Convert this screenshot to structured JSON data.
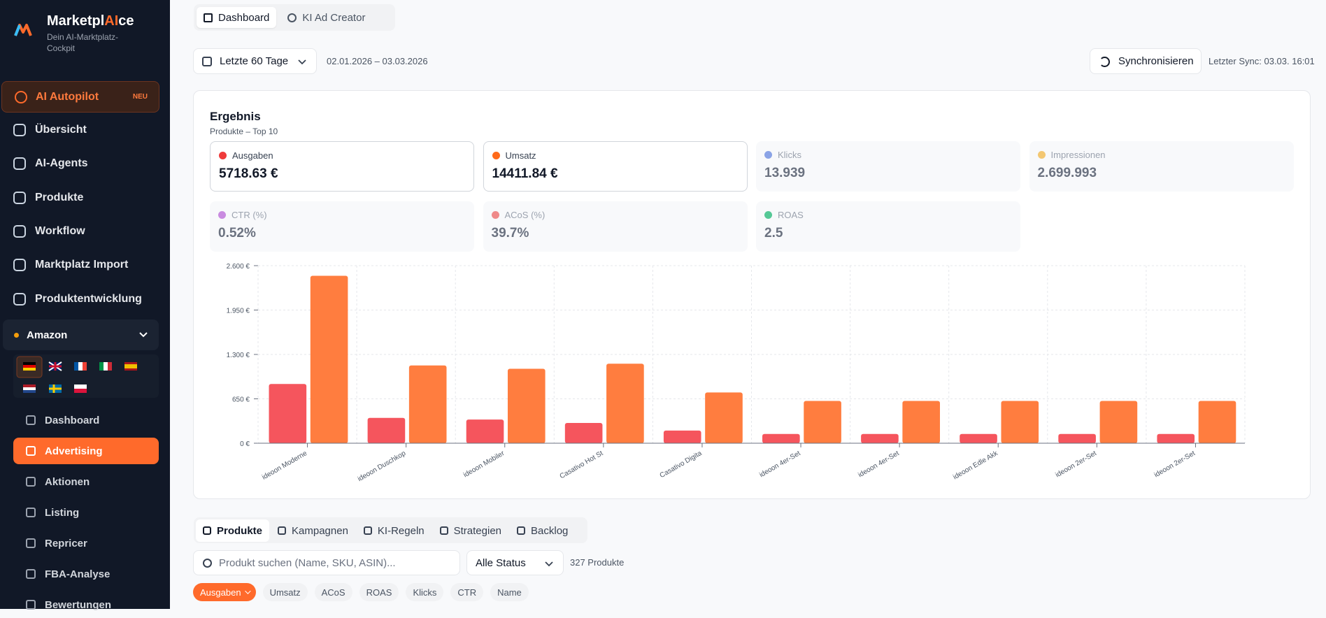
{
  "brand": {
    "prefix": "Marketpl",
    "highlight": "AI",
    "suffix": "ce",
    "tagline": "Dein AI-Marktplatz-Cockpit"
  },
  "sidebar": {
    "autopilot": {
      "label": "AI Autopilot",
      "badge": "NEU"
    },
    "nav": [
      "Übersicht",
      "AI-Agents",
      "Produkte",
      "Workflow",
      "Marktplatz Import",
      "Produktentwicklung"
    ],
    "marketplace": "Amazon",
    "subnav": [
      "Dashboard",
      "Advertising",
      "Aktionen",
      "Listing",
      "Repricer",
      "FBA-Analyse",
      "Bewertungen"
    ]
  },
  "top_tabs": [
    "Dashboard",
    "KI Ad Creator"
  ],
  "filters": {
    "period": "Letzte 60 Tage",
    "range": "02.01.2026 – 03.03.2026",
    "sync_button": "Synchronisieren",
    "last_sync": "Letzter Sync: 03.03. 16:01"
  },
  "card": {
    "title": "Ergebnis",
    "subtitle": "Produkte – Top 10",
    "metrics": [
      {
        "label": "Ausgaben",
        "value": "5718.63 €"
      },
      {
        "label": "Umsatz",
        "value": "14411.84 €"
      },
      {
        "label": "Klicks",
        "value": "13.939"
      },
      {
        "label": "Impressionen",
        "value": "2.699.993"
      },
      {
        "label": "CTR (%)",
        "value": "0.52%"
      },
      {
        "label": "ACoS (%)",
        "value": "39.7%"
      },
      {
        "label": "ROAS",
        "value": "2.5"
      }
    ]
  },
  "chart_data": {
    "type": "bar",
    "categories": [
      "ideoon Moderne",
      "ideoon Duschkop",
      "ideoon Mobiler",
      "Casativo Hot St",
      "Casativo Digita",
      "ideoon 4er-Set",
      "ideoon 4er-Set",
      "ideoon Edle Akk",
      "ideoon 2er-Set",
      "ideoon 2er-Set"
    ],
    "series": [
      {
        "name": "Ausgaben",
        "color": "#f5555d",
        "values": [
          867,
          371,
          347,
          297,
          186,
          136,
          136,
          136,
          136,
          136
        ]
      },
      {
        "name": "Umsatz",
        "color": "#ff7d3f",
        "values": [
          2452,
          1139,
          1090,
          1164,
          743,
          619,
          619,
          619,
          619,
          619
        ]
      }
    ],
    "ylim": [
      0,
      2600
    ],
    "yticks": [
      {
        "value": 0,
        "label": "0 €"
      },
      {
        "value": 650,
        "label": "650 €"
      },
      {
        "value": 1300,
        "label": "1.300 €"
      },
      {
        "value": 1950,
        "label": "1.950 €"
      },
      {
        "value": 2600,
        "label": "2.600 €"
      }
    ],
    "grid": true
  },
  "bottom_tabs": [
    "Produkte",
    "Kampagnen",
    "KI-Regeln",
    "Strategien",
    "Backlog"
  ],
  "search": {
    "placeholder": "Produkt suchen (Name, SKU, ASIN)...",
    "status": "Alle Status",
    "count": "327 Produkte"
  },
  "sort_chips": [
    "Ausgaben",
    "Umsatz",
    "ACoS",
    "ROAS",
    "Klicks",
    "CTR",
    "Name"
  ]
}
